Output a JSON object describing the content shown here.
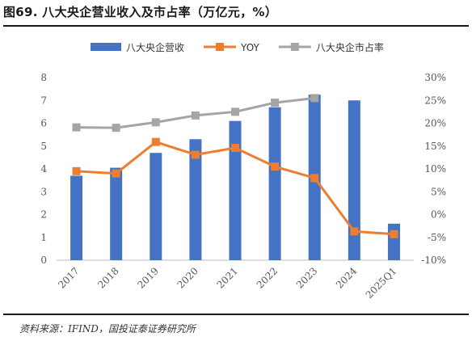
{
  "title": "图69. 八大央企营业收入及市占率（万亿元，%）",
  "source": "资料来源：IFIND，国投证泰证券研究所",
  "chart_data": {
    "type": "bar",
    "categories": [
      "2017",
      "2018",
      "2019",
      "2020",
      "2021",
      "2022",
      "2023",
      "2024",
      "2025Q1"
    ],
    "series": [
      {
        "name": "八大央企营收",
        "kind": "bar",
        "axis": "left",
        "color": "#4472C4",
        "values": [
          3.7,
          4.05,
          4.7,
          5.3,
          6.1,
          6.7,
          7.25,
          7.0,
          1.6
        ]
      },
      {
        "name": "YOY",
        "kind": "line",
        "axis": "right",
        "color": "#ED7D31",
        "values": [
          9.5,
          9.0,
          15.9,
          13.1,
          14.6,
          10.5,
          8.0,
          -3.7,
          -4.3
        ]
      },
      {
        "name": "八大央企市占率",
        "kind": "line",
        "axis": "right",
        "color": "#A5A5A5",
        "values": [
          19.1,
          19.0,
          20.2,
          21.7,
          22.5,
          24.5,
          25.5,
          null,
          null
        ]
      }
    ],
    "y_left": {
      "min": 0,
      "max": 8,
      "ticks": [
        "0",
        "1",
        "2",
        "3",
        "4",
        "5",
        "6",
        "7",
        "8"
      ]
    },
    "y_right": {
      "min": -10,
      "max": 30,
      "ticks": [
        "-10%",
        "-5%",
        "0%",
        "5%",
        "10%",
        "15%",
        "20%",
        "25%",
        "30%"
      ]
    },
    "legend_position": "top",
    "grid": false
  }
}
